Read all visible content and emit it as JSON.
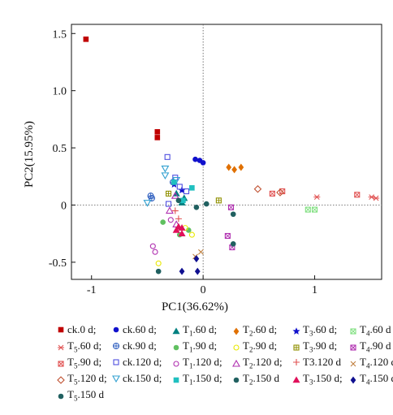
{
  "chart_data": {
    "type": "scatter",
    "xlabel": "PC1(36.62%)",
    "ylabel": "PC2(15.95%)",
    "xlim": [
      -1.18,
      1.6
    ],
    "ylim": [
      -0.65,
      1.58
    ],
    "xticks": [
      -1,
      0,
      1
    ],
    "yticks": [
      -0.5,
      0,
      0.5,
      1.0,
      1.5
    ],
    "xtick_labels": [
      "-1",
      "0",
      "1"
    ],
    "ytick_labels": [
      "-0.5",
      "0",
      "0.5",
      "1.0",
      "1.5"
    ],
    "reference_lines": {
      "x": 0,
      "y": 0,
      "style": "dotted"
    },
    "legend_position": "bottom",
    "series": [
      {
        "name": "ck.0 d",
        "color": "#c00000",
        "marker": "square-filled",
        "points": [
          [
            -1.05,
            1.45
          ],
          [
            -0.41,
            0.64
          ],
          [
            -0.41,
            0.59
          ]
        ]
      },
      {
        "name": "ck.60 d",
        "color": "#1010cc",
        "marker": "circle-filled",
        "points": [
          [
            -0.07,
            0.4
          ],
          [
            -0.03,
            0.39
          ],
          [
            0.0,
            0.37
          ]
        ]
      },
      {
        "name": "T1.60 d",
        "color": "#008080",
        "marker": "triangle-filled",
        "points": [
          [
            -0.24,
            0.1
          ],
          [
            -0.17,
            0.06
          ],
          [
            -0.19,
            0.02
          ]
        ]
      },
      {
        "name": "T2.60 d",
        "color": "#e07000",
        "marker": "diamond-filled",
        "points": [
          [
            0.23,
            0.33
          ],
          [
            0.28,
            0.31
          ],
          [
            0.34,
            0.33
          ]
        ]
      },
      {
        "name": "T3.60 d",
        "color": "#1010cc",
        "marker": "star-filled",
        "points": [
          [
            -0.26,
            0.18
          ],
          [
            -0.19,
            0.13
          ]
        ]
      },
      {
        "name": "T4.60 d",
        "color": "#80e080",
        "marker": "square-x",
        "points": [
          [
            0.94,
            -0.04
          ],
          [
            1.0,
            -0.04
          ]
        ]
      },
      {
        "name": "T5.60 d",
        "color": "#e05050",
        "marker": "asterisk",
        "points": [
          [
            1.02,
            0.07
          ],
          [
            1.51,
            0.07
          ],
          [
            1.55,
            0.06
          ]
        ]
      },
      {
        "name": "ck.90 d",
        "color": "#3060c0",
        "marker": "circle-cross",
        "points": [
          [
            -0.27,
            0.2
          ],
          [
            -0.46,
            0.06
          ],
          [
            -0.47,
            0.08
          ]
        ]
      },
      {
        "name": "T1.90 d",
        "color": "#60c060",
        "marker": "circle-filled",
        "points": [
          [
            -0.21,
            -0.26
          ],
          [
            -0.13,
            -0.22
          ],
          [
            -0.36,
            -0.15
          ]
        ]
      },
      {
        "name": "T2.90 d",
        "color": "#e8e800",
        "marker": "circle",
        "points": [
          [
            -0.16,
            -0.2
          ],
          [
            -0.1,
            -0.26
          ],
          [
            -0.4,
            -0.51
          ]
        ]
      },
      {
        "name": "T3.90 d",
        "color": "#909000",
        "marker": "square-plus",
        "points": [
          [
            0.14,
            0.04
          ],
          [
            -0.31,
            0.1
          ]
        ]
      },
      {
        "name": "T4.90 d",
        "color": "#b030b0",
        "marker": "square-x",
        "points": [
          [
            0.25,
            -0.02
          ],
          [
            0.22,
            -0.27
          ],
          [
            0.26,
            -0.37
          ]
        ]
      },
      {
        "name": "T5.90 d",
        "color": "#e05050",
        "marker": "square-x",
        "points": [
          [
            0.62,
            0.1
          ],
          [
            0.71,
            0.12
          ],
          [
            1.38,
            0.09
          ]
        ]
      },
      {
        "name": "ck.120 d",
        "color": "#5050e0",
        "marker": "square",
        "points": [
          [
            -0.32,
            0.42
          ],
          [
            -0.25,
            0.24
          ],
          [
            -0.21,
            0.16
          ],
          [
            -0.31,
            0.01
          ],
          [
            -0.15,
            0.12
          ]
        ]
      },
      {
        "name": "T1.120 d",
        "color": "#b030b0",
        "marker": "circle",
        "points": [
          [
            -0.45,
            -0.36
          ],
          [
            -0.43,
            -0.41
          ],
          [
            -0.29,
            -0.13
          ]
        ]
      },
      {
        "name": "T2.120 d",
        "color": "#b030b0",
        "marker": "triangle",
        "points": [
          [
            -0.25,
            0.08
          ],
          [
            -0.3,
            -0.05
          ],
          [
            -0.24,
            -0.17
          ]
        ]
      },
      {
        "name": "T3.120 d",
        "color": "#e05050",
        "marker": "plus",
        "points": [
          [
            -0.22,
            -0.12
          ],
          [
            -0.25,
            -0.05
          ]
        ]
      },
      {
        "name": "T4.120 d",
        "color": "#c08040",
        "marker": "x",
        "points": [
          [
            -0.07,
            -0.45
          ],
          [
            -0.02,
            -0.41
          ]
        ]
      },
      {
        "name": "T5.120 d",
        "color": "#c05030",
        "marker": "diamond",
        "points": [
          [
            0.49,
            0.14
          ],
          [
            0.69,
            0.11
          ]
        ]
      },
      {
        "name": "ck.150 d",
        "color": "#30a0d0",
        "marker": "triangle-down",
        "points": [
          [
            -0.34,
            0.32
          ],
          [
            -0.34,
            0.26
          ],
          [
            -0.24,
            0.22
          ],
          [
            -0.5,
            0.02
          ]
        ]
      },
      {
        "name": "T1.150 d",
        "color": "#20c0c0",
        "marker": "square-filled",
        "points": [
          [
            -0.26,
            0.2
          ],
          [
            -0.1,
            0.15
          ],
          [
            -0.18,
            0.04
          ]
        ]
      },
      {
        "name": "T2.150 d",
        "color": "#206060",
        "marker": "circle-filled",
        "points": [
          [
            -0.22,
            0.04
          ],
          [
            -0.06,
            -0.02
          ],
          [
            -0.4,
            -0.58
          ]
        ]
      },
      {
        "name": "T3.150 d",
        "color": "#e0105a",
        "marker": "triangle-filled",
        "points": [
          [
            -0.24,
            -0.22
          ],
          [
            -0.19,
            -0.2
          ],
          [
            -0.22,
            -0.19
          ],
          [
            -0.19,
            -0.25
          ]
        ]
      },
      {
        "name": "T4.150 d",
        "color": "#101090",
        "marker": "diamond-filled",
        "points": [
          [
            -0.19,
            -0.58
          ],
          [
            -0.05,
            -0.58
          ],
          [
            -0.06,
            -0.47
          ]
        ]
      },
      {
        "name": "T5.150 d",
        "color": "#206060",
        "marker": "circle-filled",
        "points": [
          [
            0.03,
            0.01
          ],
          [
            0.27,
            -0.08
          ],
          [
            0.27,
            -0.34
          ]
        ]
      }
    ]
  },
  "legend": [
    {
      "key": "ck.0 d;"
    },
    {
      "key": "ck.60 d;"
    },
    {
      "key": "T",
      "sub": "1",
      "rest": ".60 d;"
    },
    {
      "key": "T",
      "sub": "2",
      "rest": ".60 d;"
    },
    {
      "key": "T",
      "sub": "3",
      "rest": ".60 d;"
    },
    {
      "key": "T",
      "sub": "4",
      "rest": ".60 d"
    },
    {
      "key": "T",
      "sub": "5",
      "rest": ".60 d;"
    },
    {
      "key": "ck.90 d;"
    },
    {
      "key": "T",
      "sub": "1",
      "rest": ".90 d;"
    },
    {
      "key": "T",
      "sub": "2",
      "rest": ".90 d;"
    },
    {
      "key": "T",
      "sub": "3",
      "rest": ".90 d;"
    },
    {
      "key": "T",
      "sub": "4",
      "rest": ".90 d"
    },
    {
      "key": "T",
      "sub": "5",
      "rest": ".90 d;"
    },
    {
      "key": "ck.120 d;"
    },
    {
      "key": "T",
      "sub": "1",
      "rest": ".120 d;"
    },
    {
      "key": "T",
      "sub": "2",
      "rest": ".120 d;"
    },
    {
      "key": "T3.120 d"
    },
    {
      "key": "T",
      "sub": "4",
      "rest": ".120 d;"
    },
    {
      "key": "T",
      "sub": "5",
      "rest": ".120 d;"
    },
    {
      "key": "ck.150 d;"
    },
    {
      "key": "T",
      "sub": "1",
      "rest": ".150 d;"
    },
    {
      "key": "T",
      "sub": "2",
      "rest": ".150 d"
    },
    {
      "key": "T",
      "sub": "3",
      "rest": ".150 d;"
    },
    {
      "key": "T",
      "sub": "4",
      "rest": ".150 d;"
    },
    {
      "key": "T",
      "sub": "5",
      "rest": ".150 d"
    }
  ]
}
